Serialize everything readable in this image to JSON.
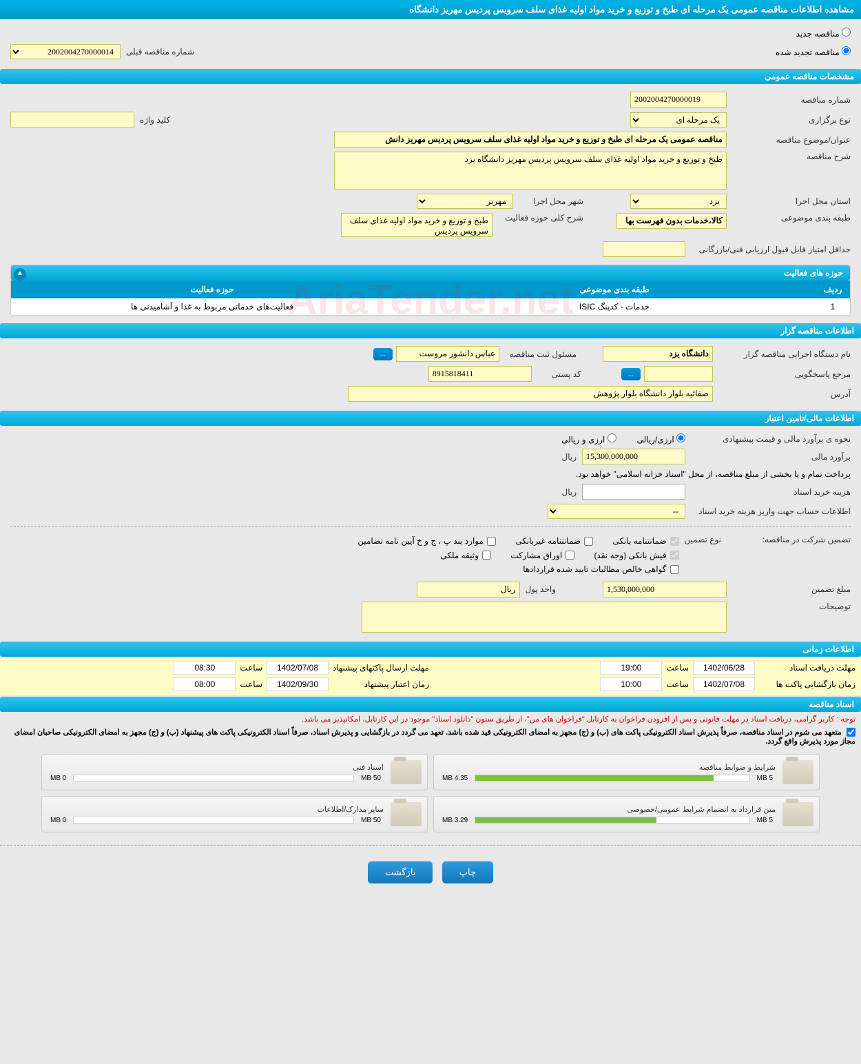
{
  "pageTitle": "مشاهده اطلاعات مناقصه عمومی یک مرحله ای طبخ و توزیع و خرید مواد اولیه غذای سلف سرویس پردیس مهریز دانشگاه",
  "tenderType": {
    "new": "مناقصه جدید",
    "renewed": "مناقصه تجدید شده",
    "selected": "renewed"
  },
  "prevTender": {
    "label": "شماره مناقصه قبلی",
    "value": "2002004270000014"
  },
  "sectionGeneral": "مشخصات مناقصه عمومی",
  "fields": {
    "tenderNo": {
      "label": "شماره مناقصه",
      "value": "2002004270000019"
    },
    "holdType": {
      "label": "نوع برگزاری",
      "value": "یک مرحله ای"
    },
    "keyword": {
      "label": "کلید واژه",
      "value": ""
    },
    "subject": {
      "label": "عنوان/موضوع مناقصه",
      "value": "مناقصه عمومی یک مرحله ای طبخ و توزیع و خرید مواد اولیه غذای سلف سرویس پردیس مهریز دانش"
    },
    "desc": {
      "label": "شرح مناقصه",
      "value": "طبخ و توزیع و خرید مواد اولیه غذای سلف سرویس پردیس مهریز دانشگاه یزد"
    },
    "province": {
      "label": "استان محل اجرا",
      "value": "یزد"
    },
    "city": {
      "label": "شهر محل اجرا",
      "value": "مهریز"
    },
    "category": {
      "label": "طبقه بندی موضوعی",
      "value": "کالا،خدمات بدون فهرست بها"
    },
    "activityScope": {
      "label": "شرح کلی حوزه فعالیت",
      "value": "طبخ و توزیع و خرید مواد اولیه غذای سلف سرویس پردیس"
    },
    "minScore": {
      "label": "حداقل امتیاز قابل قبول ارزیابی فنی/بازرگانی",
      "value": ""
    }
  },
  "activityTable": {
    "title": "حوزه های فعالیت",
    "headers": {
      "idx": "ردیف",
      "cat": "طبقه بندی موضوعی",
      "act": "حوزه فعالیت"
    },
    "rows": [
      {
        "idx": "1",
        "cat": "خدمات - کدینگ ISIC",
        "act": "فعالیت‌های خدماتی مربوط به غذا و آشامیدنی ها"
      }
    ]
  },
  "sectionOrg": "اطلاعات مناقصه گزار",
  "org": {
    "agency": {
      "label": "نام دستگاه اجرایی مناقصه گزار",
      "value": "دانشگاه یزد"
    },
    "registrar": {
      "label": "مسئول ثبت مناقصه",
      "value": "عباس دانشور مروست"
    },
    "responder": {
      "label": "مرجع پاسخگویی",
      "value": ""
    },
    "postal": {
      "label": "کد پستی",
      "value": "8915818411"
    },
    "address": {
      "label": "آدرس",
      "value": "صفائیه بلوار دانشگاه بلوار پژوهش"
    },
    "btnMore": "..."
  },
  "sectionFin": "اطلاعات مالی/تامین اعتبار",
  "fin": {
    "estType": {
      "label": "نحوه ی برآورد مالی و قیمت پیشنهادی",
      "opt1": "ارزی/ریالی",
      "opt2": "ارزی و ریالی"
    },
    "estimate": {
      "label": "برآورد مالی",
      "value": "15,300,000,000",
      "unit": "ریال"
    },
    "payNote": "پرداخت تمام و یا بخشی از مبلغ مناقصه، از محل \"اسناد خزانه اسلامی\" خواهد بود.",
    "docCost": {
      "label": "هزینه خرید اسناد",
      "value": "",
      "unit": "ریال"
    },
    "account": {
      "label": "اطلاعات حساب جهت واریز هزینه خرید اسناد",
      "value": "--"
    }
  },
  "guarantee": {
    "label": "تضمین شرکت در مناقصه:",
    "typeLabel": "نوع تضمین",
    "opts": {
      "bank": "ضمانتنامه بانکی",
      "nonbank": "ضمانتنامه غیربانکی",
      "bond": "موارد بند پ ، ج و خ آیین نامه تضامین",
      "cash": "فیش بانکی (وجه نقد)",
      "stock": "اوراق مشارکت",
      "prop": "وثیقه ملکی",
      "cert": "گواهی خالص مطالبات تایید شده قراردادها"
    },
    "amount": {
      "label": "مبلغ تضمین",
      "value": "1,530,000,000"
    },
    "currency": {
      "label": "واحد پول",
      "value": "ریال"
    },
    "notes": {
      "label": "توضیحات",
      "value": ""
    }
  },
  "sectionTime": "اطلاعات زمانی",
  "times": {
    "docDeadline": {
      "label": "مهلت دریافت اسناد",
      "date": "1402/06/28",
      "time": "19:00"
    },
    "envDeadline": {
      "label": "مهلت ارسال پاکتهای پیشنهاد",
      "date": "1402/07/08",
      "time": "08:30"
    },
    "openTime": {
      "label": "زمان بازگشایی پاکت ها",
      "date": "1402/07/08",
      "time": "10:00"
    },
    "validTime": {
      "label": "زمان اعتبار پیشنهاد",
      "date": "1402/09/30",
      "time": "08:00"
    },
    "hourLabel": "ساعت"
  },
  "sectionDocs": "اسناد مناقصه",
  "docNotice": "توجه : کاربر گرامی، دریافت اسناد در مهلت قانونی و پس از افزودن فراخوان به کارتابل \"فراخوان های من\"، از طریق ستون \"دانلود اسناد\" موجود در این کارتابل، امکانپذیر می باشد.",
  "docCommit": "متعهد می شوم در اسناد مناقصه، صرفاً پذیرش اسناد الکترونیکی پاکت های (ب) و (ج) مجهز به امضای الکترونیکی قید شده باشد. تعهد می گردد در بازگشایی و پذیرش اسناد، صرفاً اسناد الکترونیکی پاکت های پیشنهاد (ب) و (ج) مجهز به امضای الکترونیکی صاحبان امضای مجاز مورد پذیرش واقع گردد.",
  "docs": [
    {
      "title": "شرایط و ضوابط مناقصه",
      "used": "4.35 MB",
      "total": "5 MB",
      "pct": 87
    },
    {
      "title": "اسناد فنی",
      "used": "0 MB",
      "total": "50 MB",
      "pct": 0
    },
    {
      "title": "متن قرارداد به انضمام شرایط عمومی/خصوصی",
      "used": "3.29 MB",
      "total": "5 MB",
      "pct": 66
    },
    {
      "title": "سایر مدارک/اطلاعات",
      "used": "0 MB",
      "total": "50 MB",
      "pct": 0
    }
  ],
  "buttons": {
    "print": "چاپ",
    "back": "بازگشت"
  },
  "watermark": "AriaTender.net"
}
